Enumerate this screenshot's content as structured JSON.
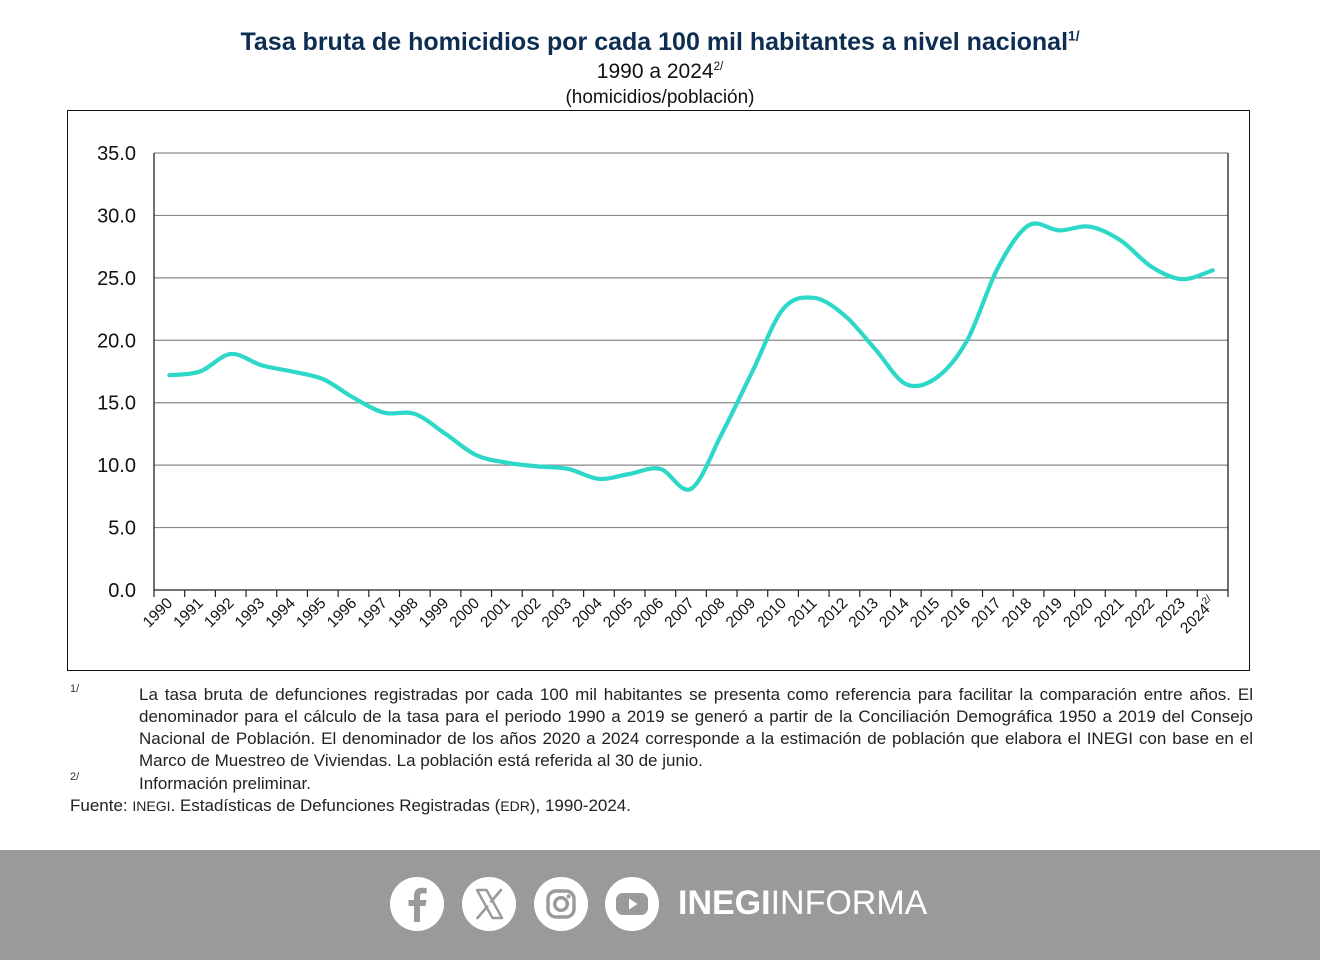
{
  "header": {
    "title": "Tasa bruta de homicidios por cada 100 mil habitantes a nivel nacional",
    "title_note": "1/",
    "period": "1990 a 2024",
    "period_note": "2/",
    "units": "(homicidios/población)"
  },
  "chart_data": {
    "type": "line",
    "title": "Tasa bruta de homicidios por cada 100 mil habitantes a nivel nacional",
    "ylabel": "(homicidios/población)",
    "ylim": [
      0,
      35
    ],
    "yticks": [
      "0.0",
      "5.0",
      "10.0",
      "15.0",
      "20.0",
      "25.0",
      "30.0",
      "35.0"
    ],
    "grid": true,
    "legend": "none",
    "x": [
      "1990",
      "1991",
      "1992",
      "1993",
      "1994",
      "1995",
      "1996",
      "1997",
      "1998",
      "1999",
      "2000",
      "2001",
      "2002",
      "2003",
      "2004",
      "2005",
      "2006",
      "2007",
      "2008",
      "2009",
      "2010",
      "2011",
      "2012",
      "2013",
      "2014",
      "2015",
      "2016",
      "2017",
      "2018",
      "2019",
      "2020",
      "2021",
      "2022",
      "2023",
      "2024"
    ],
    "last_label_note": "2/",
    "series": [
      {
        "color": "#2dd8c8",
        "values": [
          17.2,
          17.5,
          18.9,
          18.0,
          17.5,
          16.9,
          15.4,
          14.2,
          14.1,
          12.5,
          10.8,
          10.2,
          9.9,
          9.7,
          8.9,
          9.3,
          9.7,
          8.1,
          12.5,
          17.5,
          22.5,
          23.4,
          22.0,
          19.3,
          16.5,
          17.0,
          20.0,
          25.8,
          29.2,
          28.8,
          29.1,
          28.0,
          25.9,
          24.9,
          25.6
        ]
      }
    ]
  },
  "notes": [
    {
      "mark": "1/",
      "text": "La tasa bruta de defunciones registradas por cada 100 mil habitantes se presenta como referencia para facilitar la comparación entre años. El denominador para el cálculo de la tasa para el periodo 1990 a 2019 se generó a partir de la Conciliación Demográfica 1950 a 2019 del Consejo Nacional de Población. El denominador de los años 2020 a 2024 corresponde a la estimación de población que elabora el INEGI con base en el Marco de Muestreo de Viviendas. La población está referida al 30 de junio."
    },
    {
      "mark": "2/",
      "text": "Información preliminar."
    }
  ],
  "source": {
    "label": "Fuente:",
    "org": "INEGI",
    "text_before": ". Estadísticas de Defunciones Registradas (",
    "abbr": "EDR",
    "text_after": "), 1990-2024."
  },
  "footer": {
    "icons": [
      "facebook-icon",
      "x-icon",
      "instagram-icon",
      "youtube-icon"
    ],
    "brand_bold": "INEGI",
    "brand_light": "INFORMA"
  }
}
